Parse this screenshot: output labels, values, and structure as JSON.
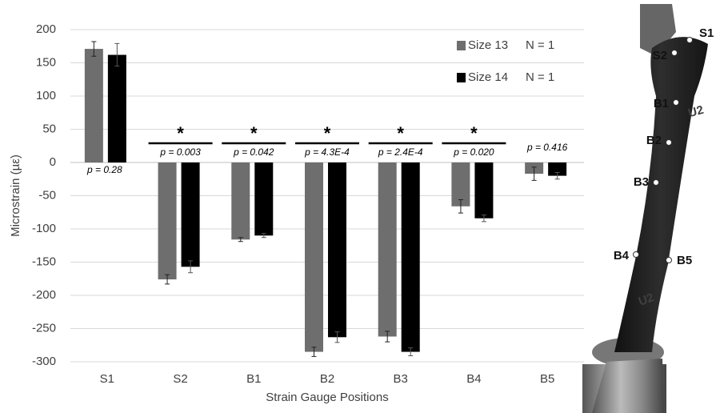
{
  "chart_data": {
    "type": "bar",
    "y_label": "Microstrain (µε)",
    "x_label": "Strain Gauge Positions",
    "categories": [
      "S1",
      "S2",
      "B1",
      "B2",
      "B3",
      "B4",
      "B5"
    ],
    "series": [
      {
        "name": "Size 13",
        "n_label": "N = 1",
        "color": "#6e6e6e",
        "values": [
          171,
          -176,
          -116,
          -285,
          -262,
          -66,
          -17
        ],
        "errors": [
          11,
          7,
          3,
          7,
          8,
          10,
          10
        ]
      },
      {
        "name": "Size 14",
        "n_label": "N = 1",
        "color": "#000000",
        "values": [
          162,
          -157,
          -110,
          -263,
          -285,
          -84,
          -20
        ],
        "errors": [
          17,
          9,
          3,
          8,
          6,
          5,
          5
        ]
      }
    ],
    "p_values": [
      "p = 0.28",
      "p = 0.003",
      "p = 0.042",
      "p = 4.3E-4",
      "p = 2.4E-4",
      "p = 0.020",
      "p = 0.416"
    ],
    "significance": [
      null,
      "*",
      "*",
      "*",
      "*",
      "*",
      null
    ],
    "ylim": [
      -300,
      200
    ],
    "yticks": [
      -300,
      -250,
      -200,
      -150,
      -100,
      -50,
      0,
      50,
      100,
      150,
      200
    ],
    "grid": true
  },
  "photo": {
    "gauges": [
      "S1",
      "S2",
      "B1",
      "B2",
      "B3",
      "B4",
      "B5"
    ],
    "markings": [
      "U2",
      "U2"
    ]
  }
}
